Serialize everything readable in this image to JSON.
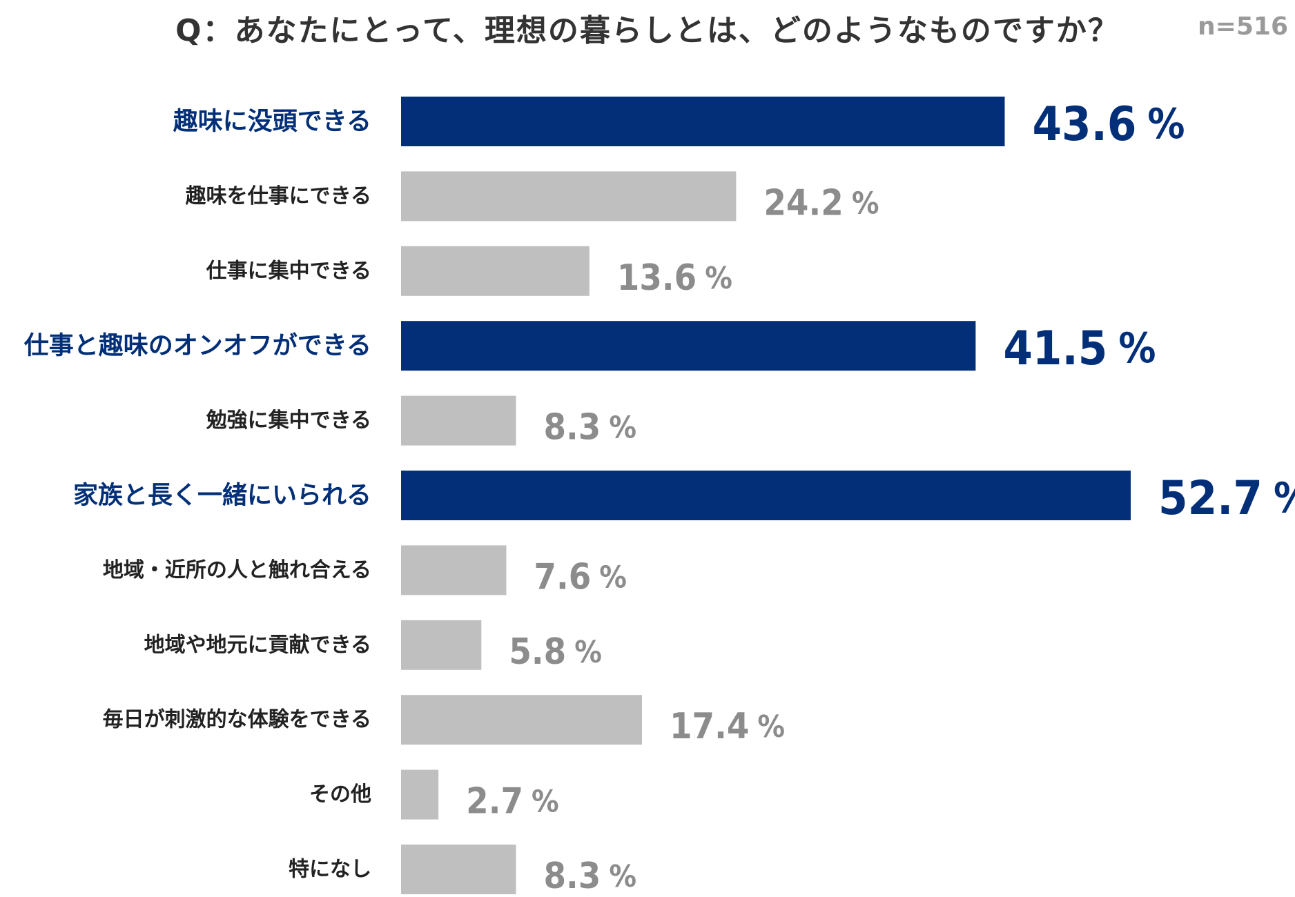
{
  "title": "Q：あなたにとって、理想の暮らしとは、どのようなものですか？",
  "sample_size": "n=516",
  "chart_data": {
    "type": "bar",
    "orientation": "horizontal",
    "title": "Q：あなたにとって、理想の暮らしとは、どのようなものですか？",
    "xlabel": "",
    "ylabel": "",
    "unit": "%",
    "xlim": [
      0,
      52.7
    ],
    "grid": false,
    "legend": "none",
    "categories": [
      "趣味に没頭できる",
      "趣味を仕事にできる",
      "仕事に集中できる",
      "仕事と趣味のオンオフができる",
      "勉強に集中できる",
      "家族と長く一緒にいられる",
      "地域・近所の人と触れ合える",
      "地域や地元に貢献できる",
      "毎日が刺激的な体験をできる",
      "その他",
      "特になし"
    ],
    "values": [
      43.6,
      24.2,
      13.6,
      41.5,
      8.3,
      52.7,
      7.6,
      5.8,
      17.4,
      2.7,
      8.3
    ],
    "value_labels": [
      "43.6",
      "24.2",
      "13.6",
      "41.5",
      "8.3",
      "52.7",
      "7.6",
      "5.8",
      "17.4",
      "2.7",
      "8.3"
    ],
    "highlighted": [
      true,
      false,
      false,
      true,
      false,
      true,
      false,
      false,
      false,
      false,
      false
    ],
    "colors": {
      "highlight": "#022f78",
      "normal": "#bfbfbf",
      "highlight_label": "#022f78",
      "normal_label": "#8c8c8c",
      "normal_category": "#222222"
    }
  }
}
